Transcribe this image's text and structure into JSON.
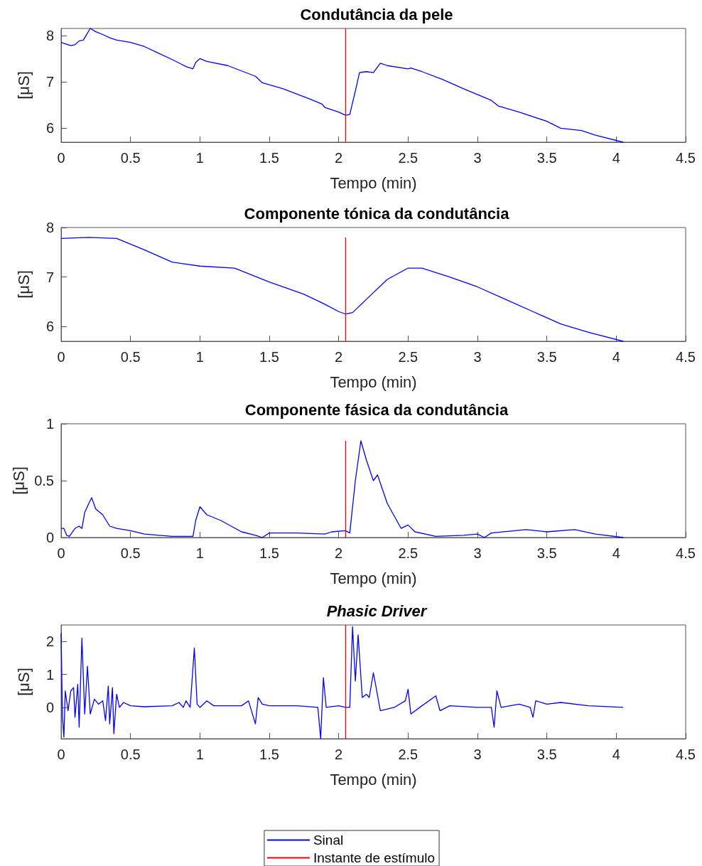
{
  "chart_data": [
    {
      "type": "line",
      "title": "Condutância da pele",
      "xlabel": "Tempo (min)",
      "ylabel": "[μS]",
      "xlim": [
        0,
        4.5
      ],
      "xticks": [
        0,
        0.5,
        1,
        1.5,
        2,
        2.5,
        3,
        3.5,
        4,
        4.5
      ],
      "ylim": [
        5.7,
        8.15
      ],
      "yticks": [
        6,
        7,
        8
      ],
      "grid": false,
      "legend": false,
      "series": [
        {
          "color": "#0000ff",
          "x": [
            0,
            0.03,
            0.07,
            0.1,
            0.13,
            0.16,
            0.18,
            0.21,
            0.25,
            0.3,
            0.35,
            0.4,
            0.5,
            0.6,
            0.7,
            0.8,
            0.9,
            0.95,
            0.97,
            1.0,
            1.05,
            1.2,
            1.4,
            1.45,
            1.6,
            1.8,
            1.88,
            1.9,
            2.0,
            2.05,
            2.08,
            2.12,
            2.15,
            2.2,
            2.25,
            2.3,
            2.35,
            2.5,
            2.52,
            2.6,
            2.75,
            2.9,
            3.1,
            3.15,
            3.3,
            3.5,
            3.6,
            3.75,
            3.85,
            4.05
          ],
          "values": [
            7.85,
            7.82,
            7.78,
            7.8,
            7.88,
            7.9,
            8.0,
            8.15,
            8.08,
            8.02,
            7.95,
            7.9,
            7.85,
            7.76,
            7.62,
            7.48,
            7.33,
            7.28,
            7.42,
            7.5,
            7.44,
            7.35,
            7.12,
            6.98,
            6.85,
            6.62,
            6.52,
            6.45,
            6.35,
            6.28,
            6.3,
            6.8,
            7.2,
            7.22,
            7.2,
            7.4,
            7.35,
            7.28,
            7.3,
            7.22,
            7.05,
            6.85,
            6.6,
            6.48,
            6.35,
            6.15,
            6.0,
            5.95,
            5.85,
            5.7
          ]
        },
        {
          "color": "#ff0000",
          "x": [
            2.05,
            2.05
          ],
          "values": [
            5.7,
            8.15
          ]
        }
      ]
    },
    {
      "type": "line",
      "title": "Componente tónica da condutância",
      "xlabel": "Tempo (min)",
      "ylabel": "[μS]",
      "xlim": [
        0,
        4.5
      ],
      "xticks": [
        0,
        0.5,
        1,
        1.5,
        2,
        2.5,
        3,
        3.5,
        4,
        4.5
      ],
      "ylim": [
        5.7,
        8
      ],
      "yticks": [
        6,
        7,
        8
      ],
      "grid": false,
      "legend": false,
      "series": [
        {
          "color": "#0000ff",
          "x": [
            0,
            0.2,
            0.4,
            0.6,
            0.8,
            1.0,
            1.25,
            1.5,
            1.75,
            1.9,
            2.0,
            2.05,
            2.1,
            2.2,
            2.35,
            2.5,
            2.6,
            2.8,
            3.0,
            3.2,
            3.4,
            3.6,
            3.8,
            4.05
          ],
          "values": [
            7.78,
            7.8,
            7.78,
            7.55,
            7.3,
            7.22,
            7.18,
            6.9,
            6.65,
            6.45,
            6.3,
            6.25,
            6.28,
            6.55,
            6.95,
            7.18,
            7.18,
            7.0,
            6.8,
            6.55,
            6.3,
            6.05,
            5.88,
            5.7
          ]
        },
        {
          "color": "#ff0000",
          "x": [
            2.05,
            2.05
          ],
          "values": [
            5.7,
            7.8
          ]
        }
      ]
    },
    {
      "type": "line",
      "title": "Componente fásica da condutância",
      "xlabel": "Tempo (min)",
      "ylabel": "[μS]",
      "xlim": [
        0,
        4.5
      ],
      "xticks": [
        0,
        0.5,
        1,
        1.5,
        2,
        2.5,
        3,
        3.5,
        4,
        4.5
      ],
      "ylim": [
        0,
        1
      ],
      "yticks": [
        0,
        0.5,
        1
      ],
      "grid": false,
      "legend": false,
      "series": [
        {
          "color": "#0000ff",
          "x": [
            0,
            0.02,
            0.04,
            0.06,
            0.1,
            0.13,
            0.15,
            0.17,
            0.2,
            0.22,
            0.25,
            0.3,
            0.35,
            0.4,
            0.5,
            0.6,
            0.8,
            0.9,
            0.95,
            0.97,
            1.0,
            1.05,
            1.15,
            1.3,
            1.4,
            1.45,
            1.5,
            1.7,
            1.9,
            1.95,
            2.05,
            2.08,
            2.12,
            2.16,
            2.2,
            2.25,
            2.28,
            2.35,
            2.45,
            2.5,
            2.55,
            2.7,
            2.9,
            3.0,
            3.05,
            3.1,
            3.35,
            3.5,
            3.7,
            3.85,
            4.05
          ],
          "values": [
            0.08,
            0.08,
            0.02,
            0.01,
            0.08,
            0.1,
            0.08,
            0.22,
            0.3,
            0.35,
            0.25,
            0.2,
            0.1,
            0.08,
            0.06,
            0.03,
            0.01,
            0.01,
            0.01,
            0.15,
            0.27,
            0.2,
            0.15,
            0.05,
            0.02,
            0.0,
            0.04,
            0.04,
            0.03,
            0.05,
            0.06,
            0.04,
            0.5,
            0.85,
            0.68,
            0.5,
            0.55,
            0.3,
            0.08,
            0.11,
            0.05,
            0.01,
            0.02,
            0.03,
            0.0,
            0.04,
            0.07,
            0.05,
            0.07,
            0.03,
            0.0
          ]
        },
        {
          "color": "#ff0000",
          "x": [
            2.05,
            2.05
          ],
          "values": [
            0,
            0.85
          ]
        }
      ]
    },
    {
      "type": "line",
      "title": "Phasic Driver",
      "xlabel": "Tempo (min)",
      "ylabel": "[μS]",
      "xlim": [
        0,
        4.5
      ],
      "xticks": [
        0,
        0.5,
        1,
        1.5,
        2,
        2.5,
        3,
        3.5,
        4,
        4.5
      ],
      "ylim": [
        -0.95,
        2.5
      ],
      "yticks": [
        0,
        1,
        2
      ],
      "grid": false,
      "legend": "bottom",
      "series": [
        {
          "name": "Sinal",
          "color": "#0000ff",
          "x": [
            0,
            0.01,
            0.02,
            0.03,
            0.05,
            0.07,
            0.09,
            0.1,
            0.12,
            0.13,
            0.15,
            0.17,
            0.19,
            0.21,
            0.24,
            0.27,
            0.3,
            0.32,
            0.34,
            0.35,
            0.37,
            0.38,
            0.4,
            0.42,
            0.45,
            0.5,
            0.6,
            0.8,
            0.85,
            0.88,
            0.9,
            0.93,
            0.96,
            0.98,
            1.0,
            1.05,
            1.1,
            1.3,
            1.35,
            1.4,
            1.42,
            1.45,
            1.5,
            1.7,
            1.85,
            1.87,
            1.89,
            1.91,
            2.0,
            2.05,
            2.08,
            2.1,
            2.12,
            2.14,
            2.17,
            2.2,
            2.22,
            2.25,
            2.27,
            2.3,
            2.4,
            2.48,
            2.5,
            2.52,
            2.6,
            2.7,
            2.73,
            2.8,
            3.0,
            3.1,
            3.12,
            3.14,
            3.17,
            3.3,
            3.38,
            3.4,
            3.42,
            3.5,
            3.6,
            3.8,
            4.05
          ],
          "values": [
            2.25,
            -0.3,
            -0.9,
            0.5,
            -0.1,
            0.5,
            0.6,
            -0.3,
            0.7,
            -0.6,
            2.1,
            -0.2,
            1.25,
            -0.2,
            0.25,
            0.1,
            0.2,
            -0.4,
            0.65,
            -0.5,
            0.6,
            -0.8,
            0.4,
            0.0,
            0.15,
            0.05,
            0.02,
            0.05,
            0.15,
            0.0,
            0.2,
            0.0,
            1.8,
            0.1,
            0.0,
            0.2,
            0.05,
            0.05,
            0.2,
            -0.5,
            0.3,
            0.1,
            0.05,
            0.05,
            0.0,
            -0.95,
            0.9,
            0.0,
            0.05,
            0.0,
            0.0,
            2.45,
            0.8,
            2.2,
            0.3,
            0.4,
            0.3,
            1.05,
            0.6,
            -0.1,
            0.0,
            0.2,
            0.55,
            -0.2,
            0.05,
            0.35,
            -0.1,
            0.05,
            0.0,
            0.0,
            -0.6,
            0.5,
            0.0,
            0.1,
            0.0,
            -0.3,
            0.2,
            0.1,
            0.15,
            0.05,
            0.0
          ]
        },
        {
          "name": "Instante de estímulo",
          "color": "#ff0000",
          "x": [
            2.05,
            2.05
          ],
          "values": [
            -0.95,
            2.5
          ]
        }
      ]
    }
  ]
}
